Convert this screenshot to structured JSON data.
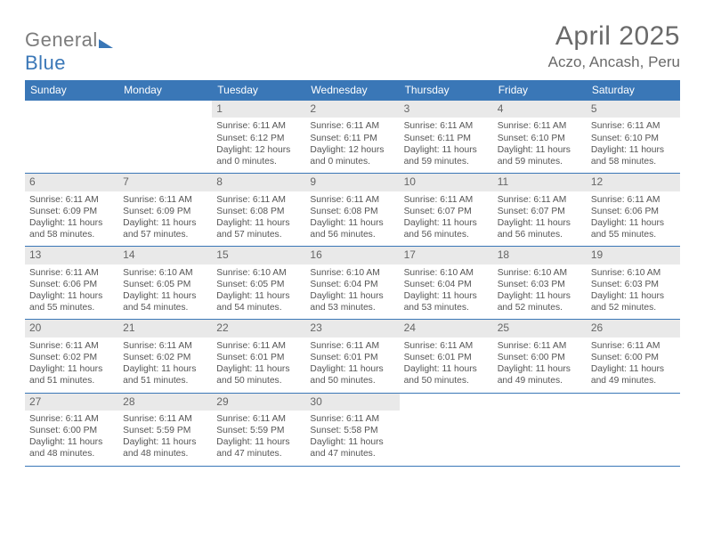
{
  "brand": {
    "part1": "General",
    "part2": "Blue"
  },
  "title": "April 2025",
  "location": "Aczo, Ancash, Peru",
  "colors": {
    "header_bg": "#3a77b7",
    "header_text": "#ffffff",
    "daynum_bg": "#e9e9e9",
    "text": "#555555",
    "rule": "#3a77b7",
    "background": "#ffffff"
  },
  "dow": [
    "Sunday",
    "Monday",
    "Tuesday",
    "Wednesday",
    "Thursday",
    "Friday",
    "Saturday"
  ],
  "weeks": [
    [
      {
        "empty": true
      },
      {
        "empty": true
      },
      {
        "day": "1",
        "sunrise": "Sunrise: 6:11 AM",
        "sunset": "Sunset: 6:12 PM",
        "daylight": "Daylight: 12 hours and 0 minutes."
      },
      {
        "day": "2",
        "sunrise": "Sunrise: 6:11 AM",
        "sunset": "Sunset: 6:11 PM",
        "daylight": "Daylight: 12 hours and 0 minutes."
      },
      {
        "day": "3",
        "sunrise": "Sunrise: 6:11 AM",
        "sunset": "Sunset: 6:11 PM",
        "daylight": "Daylight: 11 hours and 59 minutes."
      },
      {
        "day": "4",
        "sunrise": "Sunrise: 6:11 AM",
        "sunset": "Sunset: 6:10 PM",
        "daylight": "Daylight: 11 hours and 59 minutes."
      },
      {
        "day": "5",
        "sunrise": "Sunrise: 6:11 AM",
        "sunset": "Sunset: 6:10 PM",
        "daylight": "Daylight: 11 hours and 58 minutes."
      }
    ],
    [
      {
        "day": "6",
        "sunrise": "Sunrise: 6:11 AM",
        "sunset": "Sunset: 6:09 PM",
        "daylight": "Daylight: 11 hours and 58 minutes."
      },
      {
        "day": "7",
        "sunrise": "Sunrise: 6:11 AM",
        "sunset": "Sunset: 6:09 PM",
        "daylight": "Daylight: 11 hours and 57 minutes."
      },
      {
        "day": "8",
        "sunrise": "Sunrise: 6:11 AM",
        "sunset": "Sunset: 6:08 PM",
        "daylight": "Daylight: 11 hours and 57 minutes."
      },
      {
        "day": "9",
        "sunrise": "Sunrise: 6:11 AM",
        "sunset": "Sunset: 6:08 PM",
        "daylight": "Daylight: 11 hours and 56 minutes."
      },
      {
        "day": "10",
        "sunrise": "Sunrise: 6:11 AM",
        "sunset": "Sunset: 6:07 PM",
        "daylight": "Daylight: 11 hours and 56 minutes."
      },
      {
        "day": "11",
        "sunrise": "Sunrise: 6:11 AM",
        "sunset": "Sunset: 6:07 PM",
        "daylight": "Daylight: 11 hours and 56 minutes."
      },
      {
        "day": "12",
        "sunrise": "Sunrise: 6:11 AM",
        "sunset": "Sunset: 6:06 PM",
        "daylight": "Daylight: 11 hours and 55 minutes."
      }
    ],
    [
      {
        "day": "13",
        "sunrise": "Sunrise: 6:11 AM",
        "sunset": "Sunset: 6:06 PM",
        "daylight": "Daylight: 11 hours and 55 minutes."
      },
      {
        "day": "14",
        "sunrise": "Sunrise: 6:10 AM",
        "sunset": "Sunset: 6:05 PM",
        "daylight": "Daylight: 11 hours and 54 minutes."
      },
      {
        "day": "15",
        "sunrise": "Sunrise: 6:10 AM",
        "sunset": "Sunset: 6:05 PM",
        "daylight": "Daylight: 11 hours and 54 minutes."
      },
      {
        "day": "16",
        "sunrise": "Sunrise: 6:10 AM",
        "sunset": "Sunset: 6:04 PM",
        "daylight": "Daylight: 11 hours and 53 minutes."
      },
      {
        "day": "17",
        "sunrise": "Sunrise: 6:10 AM",
        "sunset": "Sunset: 6:04 PM",
        "daylight": "Daylight: 11 hours and 53 minutes."
      },
      {
        "day": "18",
        "sunrise": "Sunrise: 6:10 AM",
        "sunset": "Sunset: 6:03 PM",
        "daylight": "Daylight: 11 hours and 52 minutes."
      },
      {
        "day": "19",
        "sunrise": "Sunrise: 6:10 AM",
        "sunset": "Sunset: 6:03 PM",
        "daylight": "Daylight: 11 hours and 52 minutes."
      }
    ],
    [
      {
        "day": "20",
        "sunrise": "Sunrise: 6:11 AM",
        "sunset": "Sunset: 6:02 PM",
        "daylight": "Daylight: 11 hours and 51 minutes."
      },
      {
        "day": "21",
        "sunrise": "Sunrise: 6:11 AM",
        "sunset": "Sunset: 6:02 PM",
        "daylight": "Daylight: 11 hours and 51 minutes."
      },
      {
        "day": "22",
        "sunrise": "Sunrise: 6:11 AM",
        "sunset": "Sunset: 6:01 PM",
        "daylight": "Daylight: 11 hours and 50 minutes."
      },
      {
        "day": "23",
        "sunrise": "Sunrise: 6:11 AM",
        "sunset": "Sunset: 6:01 PM",
        "daylight": "Daylight: 11 hours and 50 minutes."
      },
      {
        "day": "24",
        "sunrise": "Sunrise: 6:11 AM",
        "sunset": "Sunset: 6:01 PM",
        "daylight": "Daylight: 11 hours and 50 minutes."
      },
      {
        "day": "25",
        "sunrise": "Sunrise: 6:11 AM",
        "sunset": "Sunset: 6:00 PM",
        "daylight": "Daylight: 11 hours and 49 minutes."
      },
      {
        "day": "26",
        "sunrise": "Sunrise: 6:11 AM",
        "sunset": "Sunset: 6:00 PM",
        "daylight": "Daylight: 11 hours and 49 minutes."
      }
    ],
    [
      {
        "day": "27",
        "sunrise": "Sunrise: 6:11 AM",
        "sunset": "Sunset: 6:00 PM",
        "daylight": "Daylight: 11 hours and 48 minutes."
      },
      {
        "day": "28",
        "sunrise": "Sunrise: 6:11 AM",
        "sunset": "Sunset: 5:59 PM",
        "daylight": "Daylight: 11 hours and 48 minutes."
      },
      {
        "day": "29",
        "sunrise": "Sunrise: 6:11 AM",
        "sunset": "Sunset: 5:59 PM",
        "daylight": "Daylight: 11 hours and 47 minutes."
      },
      {
        "day": "30",
        "sunrise": "Sunrise: 6:11 AM",
        "sunset": "Sunset: 5:58 PM",
        "daylight": "Daylight: 11 hours and 47 minutes."
      },
      {
        "empty": true
      },
      {
        "empty": true
      },
      {
        "empty": true
      }
    ]
  ]
}
